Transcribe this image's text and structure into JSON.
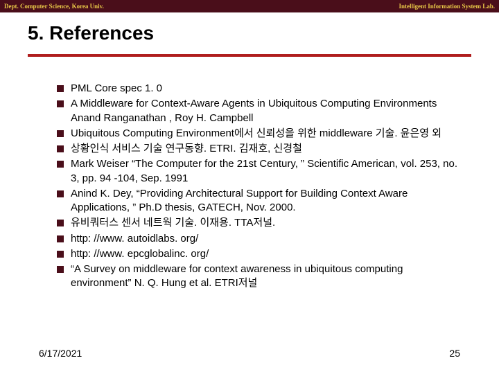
{
  "header": {
    "left": "Dept. Computer Science, Korea Univ.",
    "right": "Intelligent Information System Lab."
  },
  "title": "5. References",
  "references": [
    "PML Core spec 1. 0",
    "A Middleware for Context-Aware Agents in Ubiquitous Computing Environments\nAnand Ranganathan , Roy H. Campbell",
    "Ubiquitous Computing Environment에서 신뢰성을 위한 middleware 기술. 윤은영 외",
    "상황인식 서비스 기술 연구동향. ETRI. 김재호, 신경철",
    "Mark Weiser “The Computer for the 21st Century, ” Scientific American, vol. 253, no. 3, pp. 94 -104, Sep. 1991",
    "Anind K. Dey, “Providing Architectural Support for Building Context Aware Applications, ” Ph.D thesis, GATECH, Nov. 2000.",
    "유비쿼터스 센서 네트웍 기술. 이재용. TTA저널.",
    "http: //www. autoidlabs. org/",
    "http: //www. epcglobalinc. org/",
    "“A Survey on middleware for context awareness in ubiquitous computing environment” N. Q. Hung et al. ETRI저널"
  ],
  "footer": {
    "date": "6/17/2021",
    "page": "25"
  },
  "colors": {
    "header_bg": "#4a0e1a",
    "header_text": "#e8c848",
    "rule": "#b01e1e",
    "bullet": "#4a0e1a",
    "body_text": "#000000",
    "background": "#ffffff"
  }
}
